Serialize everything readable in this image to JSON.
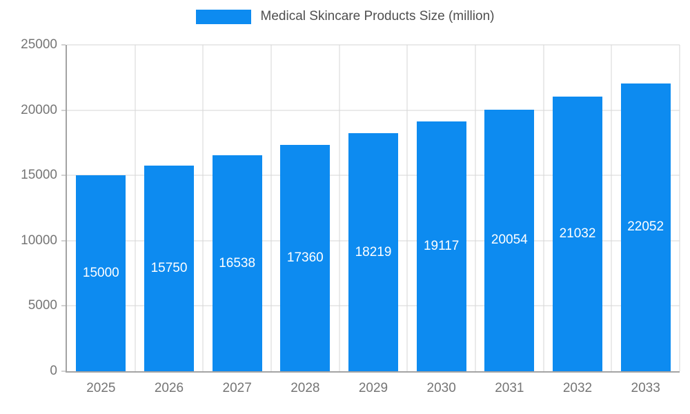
{
  "legend": {
    "label": "Medical Skincare Products Size (million)",
    "swatch_color": "#0d8bf0"
  },
  "chart_data": {
    "type": "bar",
    "title": "Medical Skincare Products Size (million)",
    "categories": [
      "2025",
      "2026",
      "2027",
      "2028",
      "2029",
      "2030",
      "2031",
      "2032",
      "2033"
    ],
    "values": [
      15000,
      15750,
      16538,
      17360,
      18219,
      19117,
      20054,
      21032,
      22052
    ],
    "xlabel": "",
    "ylabel": "",
    "ylim": [
      0,
      25000
    ],
    "yticks": [
      0,
      5000,
      10000,
      15000,
      20000,
      25000
    ],
    "bar_color": "#0d8bf0",
    "value_label_color": "#ffffff",
    "grid": true,
    "legend_position": "top"
  }
}
